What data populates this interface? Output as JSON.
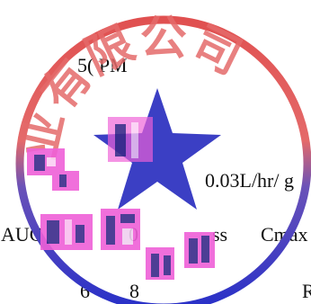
{
  "document": {
    "text_fragments": [
      {
        "id": "time",
        "text": "5( PM"
      },
      {
        "id": "rate",
        "text": "0.03L/hr/ g"
      },
      {
        "id": "auc",
        "text": "AUC"
      },
      {
        "id": "zero",
        "text": "0"
      },
      {
        "id": "ss",
        "text": "ss"
      },
      {
        "id": "cmax",
        "text": "Cmax"
      },
      {
        "id": "six",
        "text": "6"
      },
      {
        "id": "eight",
        "text": "8"
      },
      {
        "id": "r",
        "text": "R"
      }
    ]
  },
  "seal": {
    "ring_top_color": "#e05050",
    "ring_bottom_color": "#2830c8",
    "ring_text": "业有限公司",
    "star_color": "#2a2fbf",
    "scribble_colors": [
      "#ef60d8",
      "#3a2a8a",
      "#f0d0f0"
    ]
  }
}
